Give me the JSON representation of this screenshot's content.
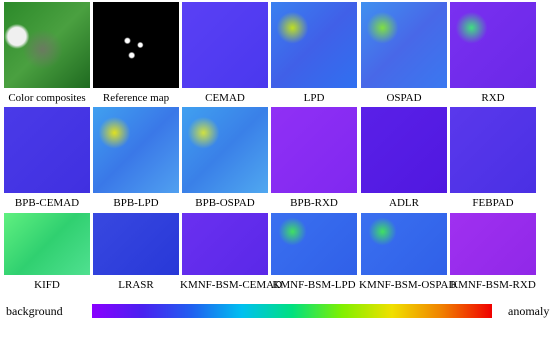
{
  "panels": [
    {
      "label": "Color composites"
    },
    {
      "label": "Reference map"
    },
    {
      "label": "CEMAD"
    },
    {
      "label": "LPD"
    },
    {
      "label": "OSPAD"
    },
    {
      "label": "RXD"
    },
    {
      "label": "BPB-CEMAD"
    },
    {
      "label": "BPB-LPD"
    },
    {
      "label": "BPB-OSPAD"
    },
    {
      "label": "BPB-RXD"
    },
    {
      "label": "ADLR"
    },
    {
      "label": "FEBPAD"
    },
    {
      "label": "KIFD"
    },
    {
      "label": "LRASR"
    },
    {
      "label": "KMNF-BSM-CEMAD"
    },
    {
      "label": "KMNF-BSM-LPD"
    },
    {
      "label": "KMNF-BSM-OSPAD"
    },
    {
      "label": "KMNF-BSM-RXD"
    }
  ],
  "colorbar": {
    "low": "background",
    "high": "anomaly"
  }
}
